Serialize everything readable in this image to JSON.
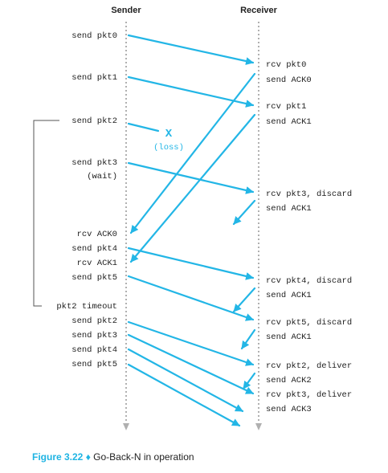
{
  "headers": {
    "sender": "Sender",
    "receiver": "Receiver"
  },
  "colors": {
    "arrow": "#23b6e6",
    "timeline": "#b0b0b0",
    "bracket": "#555555",
    "text": "#222222"
  },
  "sender_events": [
    {
      "id": "send-pkt0",
      "text": "send pkt0"
    },
    {
      "id": "send-pkt1",
      "text": "send pkt1"
    },
    {
      "id": "send-pkt2",
      "text": "send pkt2"
    },
    {
      "id": "send-pkt3",
      "text": "send pkt3"
    },
    {
      "id": "wait",
      "text": "(wait)"
    },
    {
      "id": "rcv-ack0",
      "text": "rcv ACK0"
    },
    {
      "id": "send-pkt4",
      "text": "send pkt4"
    },
    {
      "id": "rcv-ack1",
      "text": "rcv ACK1"
    },
    {
      "id": "send-pkt5",
      "text": "send pkt5"
    },
    {
      "id": "pkt2-timeout",
      "text": "pkt2 timeout"
    },
    {
      "id": "resend-pkt2",
      "text": "send pkt2"
    },
    {
      "id": "resend-pkt3",
      "text": "send pkt3"
    },
    {
      "id": "resend-pkt4",
      "text": "send pkt4"
    },
    {
      "id": "resend-pkt5",
      "text": "send pkt5"
    }
  ],
  "receiver_events": [
    {
      "id": "rcv-pkt0",
      "text": "rcv pkt0"
    },
    {
      "id": "send-ack0",
      "text": "send ACK0"
    },
    {
      "id": "rcv-pkt1",
      "text": "rcv pkt1"
    },
    {
      "id": "send-ack1",
      "text": "send ACK1"
    },
    {
      "id": "rcv-pkt3-discard",
      "text": "rcv pkt3, discard"
    },
    {
      "id": "send-ack1-b",
      "text": "send ACK1"
    },
    {
      "id": "rcv-pkt4-discard",
      "text": "rcv pkt4, discard"
    },
    {
      "id": "send-ack1-c",
      "text": "send ACK1"
    },
    {
      "id": "rcv-pkt5-discard",
      "text": "rcv pkt5, discard"
    },
    {
      "id": "send-ack1-d",
      "text": "send ACK1"
    },
    {
      "id": "rcv-pkt2-deliver",
      "text": "rcv pkt2, deliver"
    },
    {
      "id": "send-ack2",
      "text": "send ACK2"
    },
    {
      "id": "rcv-pkt3-deliver",
      "text": "rcv pkt3, deliver"
    },
    {
      "id": "send-ack3",
      "text": "send ACK3"
    }
  ],
  "loss": {
    "mark": "X",
    "label": "(loss)"
  },
  "caption": {
    "figure": "Figure 3.22",
    "separator": "♦",
    "text": "Go-Back-N in operation"
  }
}
